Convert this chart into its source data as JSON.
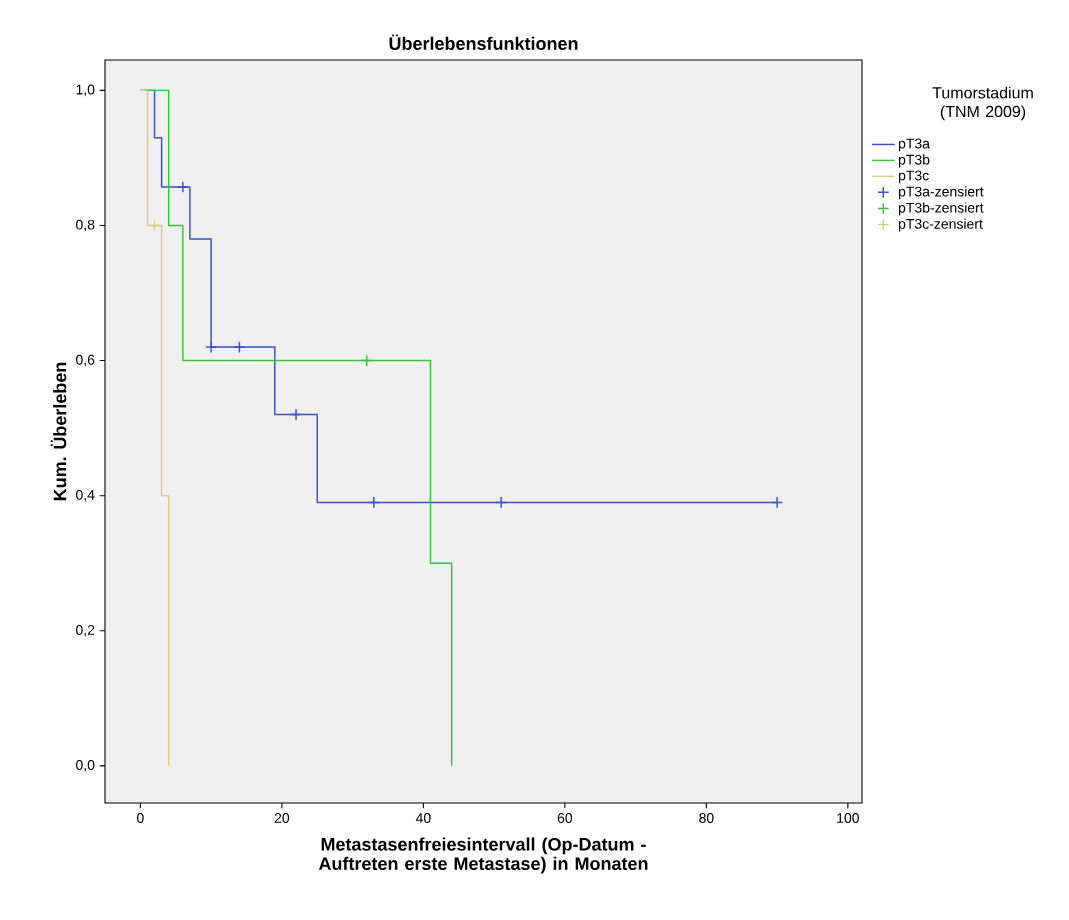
{
  "chart_data": {
    "type": "step",
    "title": "Überlebensfunktionen",
    "xlabel": "Metastasenfreiesintervall (Op-Datum - Auftreten erste Metastase) in Monaten",
    "ylabel": "Kum. Überleben",
    "legend_title": "Tumorstadium (TNM 2009)",
    "legend": "right",
    "xlim": [
      -5,
      102
    ],
    "ylim": [
      -0.055,
      1.045
    ],
    "xticks": [
      0,
      20,
      40,
      60,
      80,
      100
    ],
    "yticks": [
      {
        "value": 0,
        "label": "0,0"
      },
      {
        "value": 0.2,
        "label": "0,2"
      },
      {
        "value": 0.4,
        "label": "0,4"
      },
      {
        "value": 0.6,
        "label": "0,6"
      },
      {
        "value": 0.8,
        "label": "0,8"
      },
      {
        "value": 1,
        "label": "1,0"
      }
    ],
    "grid": false,
    "series": [
      {
        "name": "pT3a",
        "color": "#3a52c4",
        "x": [
          0,
          2,
          3,
          7,
          10,
          19,
          25,
          90
        ],
        "values": [
          1,
          0.93,
          0.857,
          0.78,
          0.62,
          0.52,
          0.39,
          0.39
        ]
      },
      {
        "name": "pT3b",
        "color": "#3fbf3f",
        "x": [
          0,
          4,
          6,
          41,
          44
        ],
        "values": [
          1,
          0.8,
          0.6,
          0.3,
          0
        ]
      },
      {
        "name": "pT3c",
        "color": "#d4cc8c",
        "x": [
          0,
          1,
          3,
          4
        ],
        "values": [
          1,
          0.8,
          0.4,
          0
        ]
      },
      {
        "name": "pT3a-zensiert",
        "type": "scatter",
        "marker": "cross",
        "color": "#3a52c4",
        "x": [
          6,
          10,
          14,
          22,
          33,
          51,
          90
        ],
        "values": [
          0.857,
          0.62,
          0.62,
          0.52,
          0.39,
          0.39,
          0.39
        ]
      },
      {
        "name": "pT3b-zensiert",
        "type": "scatter",
        "marker": "cross",
        "color": "#3fbf3f",
        "x": [
          32
        ],
        "values": [
          0.6
        ]
      },
      {
        "name": "pT3c-zensiert",
        "type": "scatter",
        "marker": "cross",
        "color": "#d4cc8c",
        "x": [
          2
        ],
        "values": [
          0.8
        ]
      }
    ]
  }
}
